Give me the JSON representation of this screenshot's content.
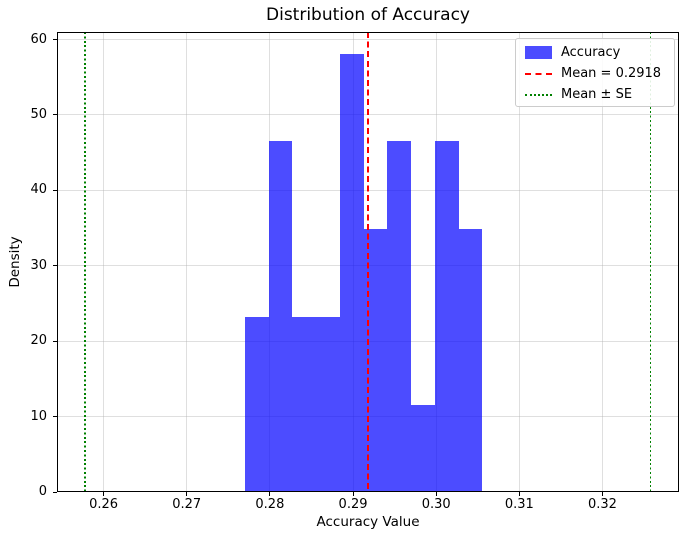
{
  "chart_data": {
    "type": "bar",
    "subtype": "histogram",
    "title": "Distribution of Accuracy",
    "xlabel": "Accuracy Value",
    "ylabel": "Density",
    "xlim": [
      0.2544,
      0.3292
    ],
    "ylim": [
      0,
      61.0
    ],
    "grid": true,
    "legend_position": "upper right",
    "xticks": [
      {
        "value": 0.26,
        "label": "0.26"
      },
      {
        "value": 0.27,
        "label": "0.27"
      },
      {
        "value": 0.28,
        "label": "0.28"
      },
      {
        "value": 0.29,
        "label": "0.29"
      },
      {
        "value": 0.3,
        "label": "0.30"
      },
      {
        "value": 0.31,
        "label": "0.31"
      },
      {
        "value": 0.32,
        "label": "0.32"
      }
    ],
    "yticks": [
      {
        "value": 0,
        "label": "0"
      },
      {
        "value": 10,
        "label": "10"
      },
      {
        "value": 20,
        "label": "20"
      },
      {
        "value": 30,
        "label": "30"
      },
      {
        "value": 40,
        "label": "40"
      },
      {
        "value": 50,
        "label": "50"
      },
      {
        "value": 60,
        "label": "60"
      }
    ],
    "series_label": "Accuracy",
    "bin_edges": [
      0.277,
      0.2799,
      0.2827,
      0.2856,
      0.2884,
      0.2913,
      0.2941,
      0.297,
      0.2998,
      0.3027,
      0.3055
    ],
    "densities": [
      23.2,
      46.5,
      23.2,
      23.2,
      58.1,
      34.9,
      46.5,
      11.6,
      46.5,
      34.9
    ],
    "bar_color": "#0000FF",
    "bar_alpha": 0.7,
    "mean": 0.2918,
    "mean_line": {
      "value": 0.2918,
      "color": "#FF0000",
      "style": "dashed"
    },
    "se_lines": {
      "values": [
        0.2578,
        0.3258
      ],
      "color": "#008000",
      "style": "dotted"
    }
  },
  "legend": {
    "items": [
      {
        "label": "Accuracy",
        "swatch": "patch",
        "color": "#0000FF",
        "alpha": 0.7
      },
      {
        "label": "Mean = 0.2918",
        "swatch": "dashed",
        "color": "#FF0000"
      },
      {
        "label": "Mean ± SE",
        "swatch": "dotted",
        "color": "#008000"
      }
    ]
  }
}
